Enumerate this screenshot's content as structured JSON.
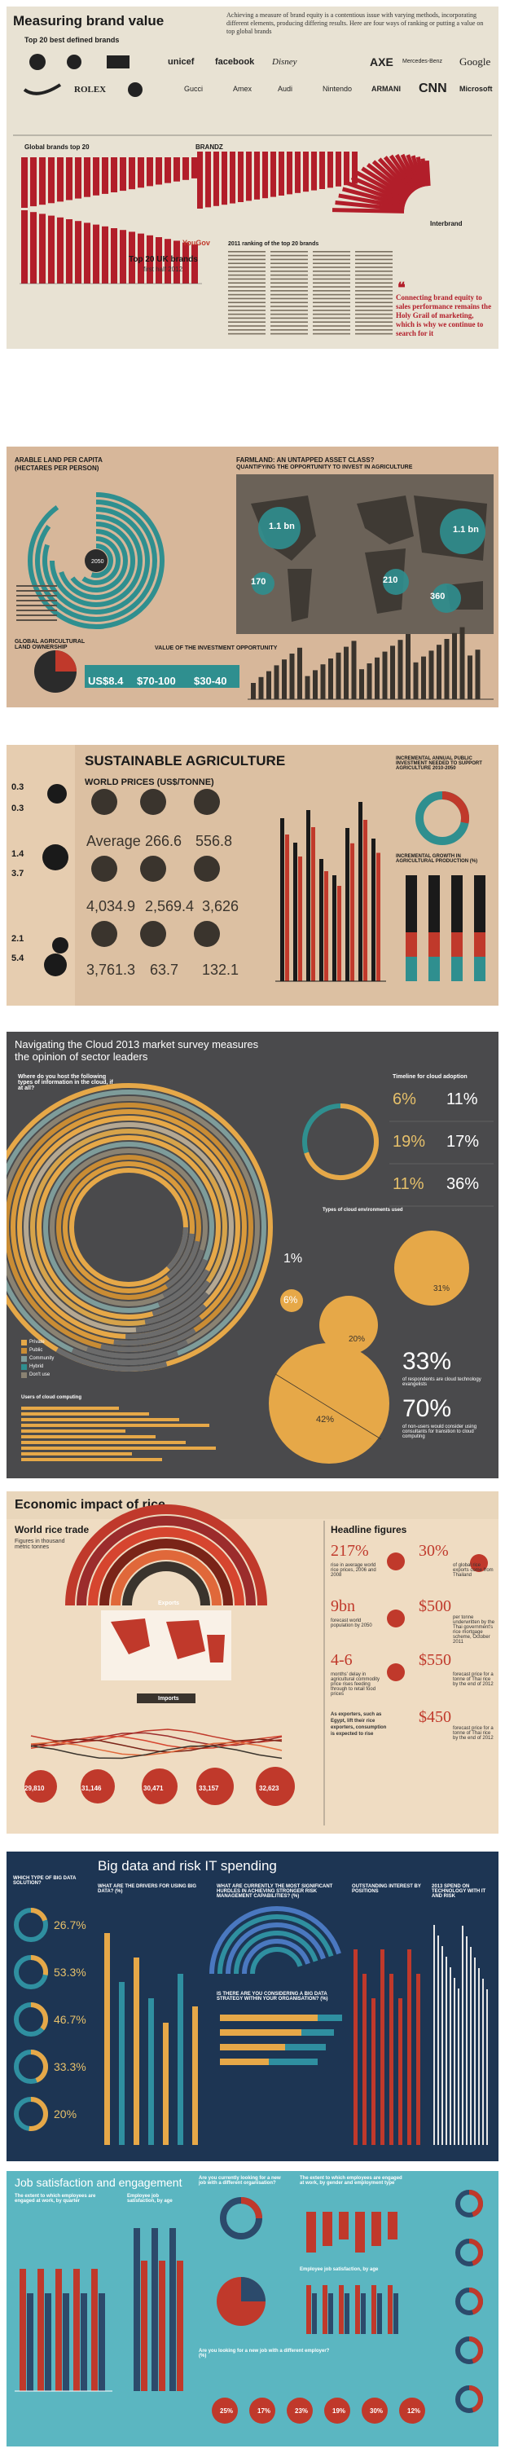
{
  "panels": {
    "brand": {
      "title": "Measuring brand value",
      "intro": "Achieving a measure of brand equity is a contentious issue with varying methods, incorporating different elements, producing differing results. Here are four ways of ranking or putting a value on top global brands",
      "subtitle": "Top 20 best defined brands",
      "brand_names": [
        "unicef",
        "facebook",
        "Disney",
        "AXE",
        "Mercedes-Benz",
        "Google",
        "ROLEX",
        "Gucci",
        "Amex",
        "Audi",
        "Nintendo",
        "ARMANI",
        "CNN",
        "Microsoft"
      ],
      "label_global": "Global brands top 20",
      "label_brandz": "BRANDZ",
      "label_uk": "Top 20 UK brands",
      "label_uk_sub": "first half 2012",
      "label_yougov": "YouGov",
      "label_interbrand": "Interbrand",
      "label_interbrand_list": "2011 ranking of the top 20 brands",
      "quote": "Connecting brand equity to sales performance remains the Holy Grail of marketing, which is why we continue to search for it"
    },
    "land": {
      "title1": "ARABLE LAND PER CAPITA",
      "title1b": "(HECTARES PER PERSON)",
      "title2": "FARMLAND: AN UNTAPPED ASSET CLASS?",
      "title2b": "QUANTIFYING THE OPPORTUNITY TO INVEST IN AGRICULTURE",
      "value_center": "2050",
      "label_ownership": "GLOBAL AGRICULTURAL LAND OWNERSHIP",
      "label_value": "VALUE OF THE INVESTMENT OPPORTUNITY",
      "big1": "US$8.4",
      "big2": "$70-100",
      "big3": "$30-40",
      "map_values": [
        "1.1 bn",
        "1.1 bn",
        "210",
        "170",
        "360"
      ]
    },
    "agri": {
      "title": "SUSTAINABLE AGRICULTURE",
      "subtitle": "WORLD PRICES (US$/TONNE)",
      "label_avg": "Average",
      "prices_row1": [
        "266.6",
        "556.8"
      ],
      "prices_row2": [
        "4,034.9",
        "2,569.4",
        "3,626"
      ],
      "prices_row3": [
        "3,761.3",
        "63.7",
        "132.1"
      ],
      "side_values": [
        "0.3",
        "0.3",
        "1.4",
        "3.7",
        "2.1",
        "5.4"
      ],
      "right_title": "INCREMENTAL ANNUAL PUBLIC INVESTMENT NEEDED TO SUPPORT AGRICULTURE 2010-2050",
      "right_title2": "INCREMENTAL GROWTH IN AGRICULTURAL PRODUCTION (%)"
    },
    "cloud": {
      "title": "Navigating the Cloud 2013 market survey measures the opinion of sector leaders",
      "q_left": "Where do you host the following types of information in the cloud, if at all?",
      "q_right": "Timeline for cloud adoption",
      "stats": [
        {
          "value": "6%",
          "label": "now"
        },
        {
          "value": "11%",
          "label": "in 2 years"
        },
        {
          "value": "19%",
          "label": "now"
        },
        {
          "value": "17%",
          "label": "in 2 years"
        },
        {
          "value": "11%",
          "label": "now"
        },
        {
          "value": "36%",
          "label": "in 2 years"
        }
      ],
      "label_types": "Types of cloud environments used",
      "pct_1": "1%",
      "pct_6": "6%",
      "pct_20": "20%",
      "pct_31": "31%",
      "pct_42": "42%",
      "big_33": "33%",
      "big_33_text": "of respondents are cloud technology evangelists",
      "big_70": "70%",
      "big_70_text": "of non-users would consider using consultants for transition to cloud computing",
      "legend": [
        "Private",
        "Public",
        "Community",
        "Hybrid",
        "Don't use"
      ],
      "label_users": "Users of cloud computing"
    },
    "rice": {
      "title": "Economic impact of rice",
      "left_title": "World rice trade",
      "left_sub": "Figures in thousand metric tonnes",
      "label_exports": "Exports",
      "label_imports": "Imports",
      "right_title": "Headline figures",
      "figures": [
        {
          "value": "217%",
          "label": "rise in average world rice prices, 2006 and 2008"
        },
        {
          "value": "30%",
          "label": "of global rice exports come from Thailand"
        },
        {
          "value": "9bn",
          "label": "forecast world population by 2050"
        },
        {
          "value": "$500",
          "label": "per tonne underwritten by the Thai government's rice mortgage scheme, October 2011"
        },
        {
          "value": "4-6",
          "label": "months' delay in agricultural commodity price rises feeding through to retail food prices"
        },
        {
          "value": "$550",
          "label": "forecast price for a tonne of Thai rice by the end of 2012"
        },
        {
          "value": "As exporters, such as Egypt, lift their rice exporters, consumption is expected to rise",
          "label": ""
        },
        {
          "value": "$450",
          "label": "forecast price for a tonne of Thai rice by the end of 2012"
        }
      ],
      "circle_values": [
        "29,810",
        "31,146",
        "30,471",
        "33,157",
        "32,623"
      ]
    },
    "bigdata": {
      "title": "Big data and risk IT spending",
      "q1": "WHICH TYPE OF BIG DATA SOLUTION?",
      "donuts": [
        "26.7%",
        "53.3%",
        "46.7%",
        "33.3%",
        "20%"
      ],
      "q2": "WHAT ARE THE DRIVERS FOR USING BIG DATA? (%)",
      "q3": "WHAT ARE CURRENTLY THE MOST SIGNIFICANT HURDLES IN ACHIEVING STRONGER RISK MANAGEMENT CAPABILITIES? (%)",
      "q4": "IS THERE ARE YOU CONSIDERING A BIG DATA STRATEGY WITHIN YOUR ORGANISATION? (%)",
      "q5": "OUTSTANDING INTEREST BY POSITIONS",
      "q6": "2013 SPEND ON TECHNOLOGY WITH IT AND RISK"
    },
    "job": {
      "title": "Job satisfaction and engagement",
      "q1": "The extent to which employees are engaged at work, by quarter",
      "q2": "Employee job satisfaction, by age",
      "q3": "Are you currently looking for a new job with a different organisation?",
      "q4": "The extent to which employees are engaged at work, by gender and employment type",
      "q5": "Employee job satisfaction, by age",
      "q6": "Are you looking for a new job with a different employer? (%)",
      "percents": [
        "25%",
        "17%",
        "23%",
        "19%",
        "30%",
        "12%"
      ]
    }
  }
}
